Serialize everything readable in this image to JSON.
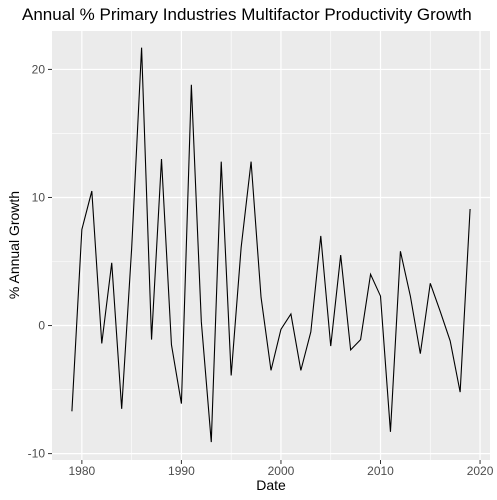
{
  "chart_data": {
    "type": "line",
    "title": "Annual % Primary Industries Multifactor Productivity Growth",
    "xlabel": "Date",
    "ylabel": "% Annual Growth",
    "xlim": [
      1977,
      2021
    ],
    "ylim": [
      -10.5,
      23
    ],
    "xticks": [
      1980,
      1990,
      2000,
      2010,
      2020
    ],
    "yticks": [
      -10,
      0,
      10,
      20
    ],
    "grid": true,
    "series": [
      {
        "x": [
          1979,
          1980,
          1981,
          1982,
          1983,
          1984,
          1985,
          1986,
          1987,
          1988,
          1989,
          1990,
          1991,
          1992,
          1993,
          1994,
          1995,
          1996,
          1997,
          1998,
          1999,
          2000,
          2001,
          2002,
          2003,
          2004,
          2005,
          2006,
          2007,
          2008,
          2009,
          2010,
          2011,
          2012,
          2013,
          2014,
          2015,
          2016,
          2017,
          2018,
          2019
        ],
        "values": [
          -6.7,
          7.5,
          10.5,
          -1.4,
          4.9,
          -6.5,
          6.0,
          21.7,
          -1.1,
          13.0,
          -1.5,
          -6.1,
          18.8,
          0.3,
          -9.1,
          12.8,
          -3.9,
          6.1,
          12.8,
          2.2,
          -3.5,
          -0.3,
          0.9,
          -3.5,
          -0.5,
          7.0,
          -1.6,
          5.5,
          -1.9,
          -1.1,
          4.0,
          2.3,
          -8.3,
          5.8,
          2.3,
          -2.2,
          3.3,
          1.1,
          -1.2,
          -5.2,
          9.1
        ]
      }
    ]
  }
}
